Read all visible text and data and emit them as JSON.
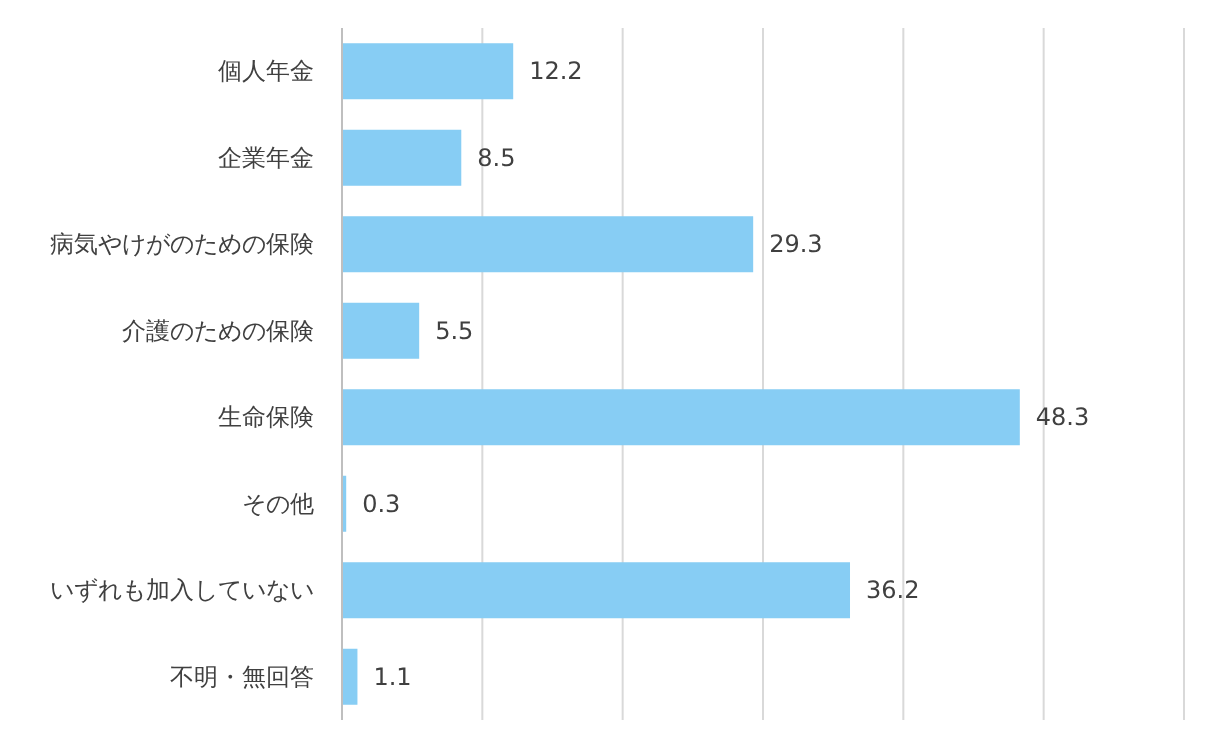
{
  "chart_data": {
    "type": "bar",
    "orientation": "horizontal",
    "categories": [
      "個人年金",
      "企業年金",
      "病気やけがのための保険",
      "介護のための保険",
      "生命保険",
      "その他",
      "いずれも加入していない",
      "不明・無回答"
    ],
    "values": [
      12.2,
      8.5,
      29.3,
      5.5,
      48.3,
      0.3,
      36.2,
      1.1
    ],
    "color": "#87cdf4",
    "xlim": [
      0,
      60
    ],
    "xticks": [
      {
        "value": 0,
        "label": null
      },
      {
        "value": 10,
        "label": null
      },
      {
        "value": 20,
        "label": null
      },
      {
        "value": 30,
        "label": null
      },
      {
        "value": 40,
        "label": null
      },
      {
        "value": 50,
        "label": null
      },
      {
        "value": 60,
        "label": null
      }
    ],
    "grid": "x",
    "tick_labels": "y",
    "data_labels": true
  }
}
